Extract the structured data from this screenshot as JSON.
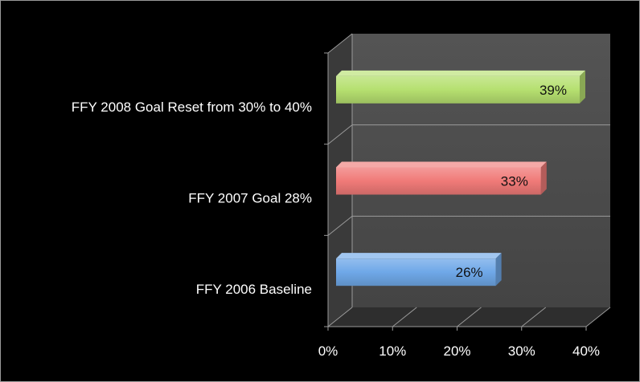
{
  "chart_data": {
    "type": "bar",
    "orientation": "horizontal",
    "style": "3d",
    "categories": [
      "FFY 2006 Baseline",
      "FFY 2007 Goal 28%",
      "FFY 2008 Goal Reset from 30% to 40%"
    ],
    "values": [
      26,
      33,
      39
    ],
    "value_labels": [
      "26%",
      "33%",
      "39%"
    ],
    "xlim": [
      0,
      40
    ],
    "x_ticks": [
      0,
      10,
      20,
      30,
      40
    ],
    "x_tick_labels": [
      "0%",
      "10%",
      "20%",
      "30%",
      "40%"
    ],
    "grid": true,
    "legend": "none",
    "colors": {
      "background": "#000000",
      "plot_wall": "#4a4a4a",
      "side_wall": "#3a3a3a",
      "floor": "#2e2e2e",
      "gridline": "#9a9a9a",
      "text": "#ffffff",
      "label_text": "#111111",
      "bars": [
        "#6fa8e8",
        "#f07a78",
        "#b6e070"
      ]
    }
  }
}
